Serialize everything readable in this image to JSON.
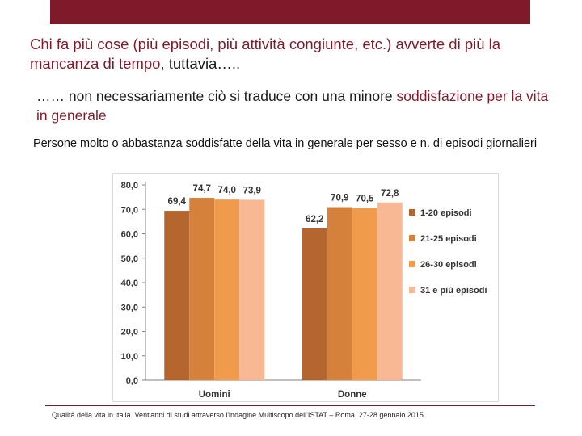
{
  "heading": {
    "part1": "Chi fa più cose (più episodi, più attività congiunte, etc.) avverte di più la mancanza di tempo",
    "part2": ", tuttavia….."
  },
  "subheading": {
    "part1": "…… non necessariamente ciò si traduce con una minore ",
    "part2": "soddisfazione per la vita in generale"
  },
  "caption": "Persone molto o abbastanza soddisfatte della vita in generale per sesso e n. di episodi giornalieri",
  "footer": "Qualità della vita in Italia. Vent'anni di studi attraverso l'indagine Multiscopo dell'ISTAT – Roma, 27-28 gennaio 2015",
  "chart_data": {
    "type": "bar",
    "title": "",
    "xlabel": "",
    "ylabel": "",
    "categories": [
      "Uomini",
      "Donne"
    ],
    "series": [
      {
        "name": "1-20 episodi",
        "values": [
          69.4,
          62.2
        ],
        "color": "#b5652e"
      },
      {
        "name": "21-25 episodi",
        "values": [
          74.7,
          70.9
        ],
        "color": "#d5813c"
      },
      {
        "name": "26-30 episodi",
        "values": [
          74.0,
          70.5
        ],
        "color": "#f09a4c"
      },
      {
        "name": "31 e più episodi",
        "values": [
          73.9,
          72.8
        ],
        "color": "#f8b894"
      }
    ],
    "data_labels": [
      [
        "69,4",
        "74,7",
        "74,0",
        "73,9"
      ],
      [
        "62,2",
        "70,9",
        "70,5",
        "72,8"
      ]
    ],
    "y_ticks": [
      "0,0",
      "10,0",
      "20,0",
      "30,0",
      "40,0",
      "50,0",
      "60,0",
      "70,0",
      "80,0"
    ],
    "ylim": [
      0,
      80
    ],
    "grid": false,
    "legend_position": "right"
  }
}
